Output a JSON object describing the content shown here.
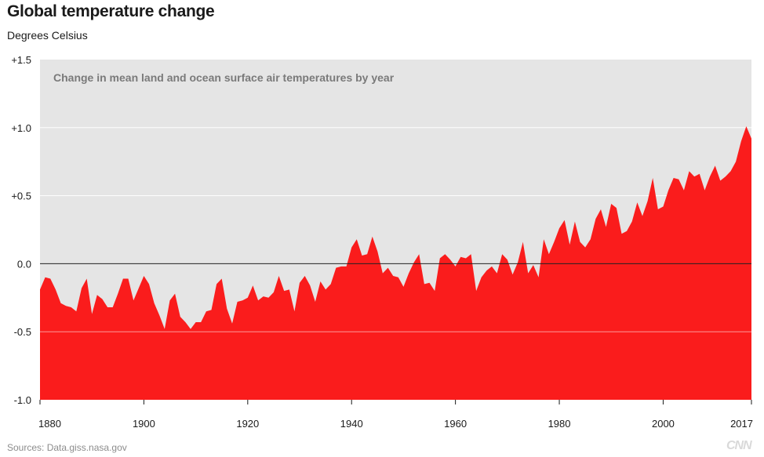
{
  "header": {
    "title": "Global temperature change",
    "subtitle": "Degrees Celsius"
  },
  "footer": {
    "source": "Sources: Data.giss.nasa.gov",
    "logo": "CNN"
  },
  "colors": {
    "area": "#fa1c1c",
    "plot_background": "#e5e5e5",
    "zero_line": "#222222",
    "grid": "#ffffff"
  },
  "chart_data": {
    "type": "area",
    "title": "Global temperature change",
    "subtitle": "Degrees Celsius",
    "annotation": "Change in mean land and ocean surface air temperatures by year",
    "xlabel": "",
    "ylabel": "",
    "xlim": [
      1880,
      2017
    ],
    "ylim": [
      -1.0,
      1.5
    ],
    "x_ticks": [
      1880,
      1900,
      1920,
      1940,
      1960,
      1980,
      2000,
      2017
    ],
    "y_ticks": [
      {
        "value": 1.5,
        "label": "+1.5"
      },
      {
        "value": 1.0,
        "label": "+1.0"
      },
      {
        "value": 0.5,
        "label": "+0.5"
      },
      {
        "value": 0.0,
        "label": "0.0"
      },
      {
        "value": -0.5,
        "label": "-0.5"
      },
      {
        "value": -1.0,
        "label": "-1.0"
      }
    ],
    "grid": true,
    "baseline": -1.0,
    "series": [
      {
        "x": [
          1880,
          1881,
          1882,
          1883,
          1884,
          1885,
          1886,
          1887,
          1888,
          1889,
          1890,
          1891,
          1892,
          1893,
          1894,
          1895,
          1896,
          1897,
          1898,
          1899,
          1900,
          1901,
          1902,
          1903,
          1904,
          1905,
          1906,
          1907,
          1908,
          1909,
          1910,
          1911,
          1912,
          1913,
          1914,
          1915,
          1916,
          1917,
          1918,
          1919,
          1920,
          1921,
          1922,
          1923,
          1924,
          1925,
          1926,
          1927,
          1928,
          1929,
          1930,
          1931,
          1932,
          1933,
          1934,
          1935,
          1936,
          1937,
          1938,
          1939,
          1940,
          1941,
          1942,
          1943,
          1944,
          1945,
          1946,
          1947,
          1948,
          1949,
          1950,
          1951,
          1952,
          1953,
          1954,
          1955,
          1956,
          1957,
          1958,
          1959,
          1960,
          1961,
          1962,
          1963,
          1964,
          1965,
          1966,
          1967,
          1968,
          1969,
          1970,
          1971,
          1972,
          1973,
          1974,
          1975,
          1976,
          1977,
          1978,
          1979,
          1980,
          1981,
          1982,
          1983,
          1984,
          1985,
          1986,
          1987,
          1988,
          1989,
          1990,
          1991,
          1992,
          1993,
          1994,
          1995,
          1996,
          1997,
          1998,
          1999,
          2000,
          2001,
          2002,
          2003,
          2004,
          2005,
          2006,
          2007,
          2008,
          2009,
          2010,
          2011,
          2012,
          2013,
          2014,
          2015,
          2016,
          2017
        ],
        "values": [
          -0.19,
          -0.1,
          -0.11,
          -0.19,
          -0.29,
          -0.31,
          -0.32,
          -0.35,
          -0.18,
          -0.11,
          -0.37,
          -0.23,
          -0.26,
          -0.32,
          -0.32,
          -0.22,
          -0.11,
          -0.11,
          -0.27,
          -0.18,
          -0.09,
          -0.15,
          -0.29,
          -0.38,
          -0.48,
          -0.27,
          -0.22,
          -0.39,
          -0.43,
          -0.48,
          -0.43,
          -0.43,
          -0.35,
          -0.34,
          -0.15,
          -0.11,
          -0.33,
          -0.44,
          -0.28,
          -0.27,
          -0.25,
          -0.16,
          -0.27,
          -0.24,
          -0.25,
          -0.21,
          -0.09,
          -0.2,
          -0.19,
          -0.35,
          -0.14,
          -0.09,
          -0.16,
          -0.28,
          -0.13,
          -0.19,
          -0.15,
          -0.03,
          -0.02,
          -0.02,
          0.12,
          0.18,
          0.06,
          0.07,
          0.2,
          0.09,
          -0.07,
          -0.03,
          -0.09,
          -0.1,
          -0.17,
          -0.07,
          0.01,
          0.07,
          -0.15,
          -0.14,
          -0.2,
          0.04,
          0.07,
          0.03,
          -0.02,
          0.05,
          0.04,
          0.07,
          -0.2,
          -0.1,
          -0.05,
          -0.02,
          -0.07,
          0.07,
          0.03,
          -0.08,
          0.01,
          0.16,
          -0.07,
          -0.01,
          -0.1,
          0.18,
          0.07,
          0.16,
          0.26,
          0.32,
          0.14,
          0.31,
          0.16,
          0.12,
          0.18,
          0.33,
          0.4,
          0.27,
          0.44,
          0.41,
          0.22,
          0.24,
          0.31,
          0.45,
          0.35,
          0.46,
          0.63,
          0.4,
          0.42,
          0.54,
          0.63,
          0.62,
          0.54,
          0.68,
          0.64,
          0.66,
          0.54,
          0.64,
          0.72,
          0.61,
          0.64,
          0.68,
          0.75,
          0.9,
          1.01,
          0.92
        ]
      }
    ]
  }
}
